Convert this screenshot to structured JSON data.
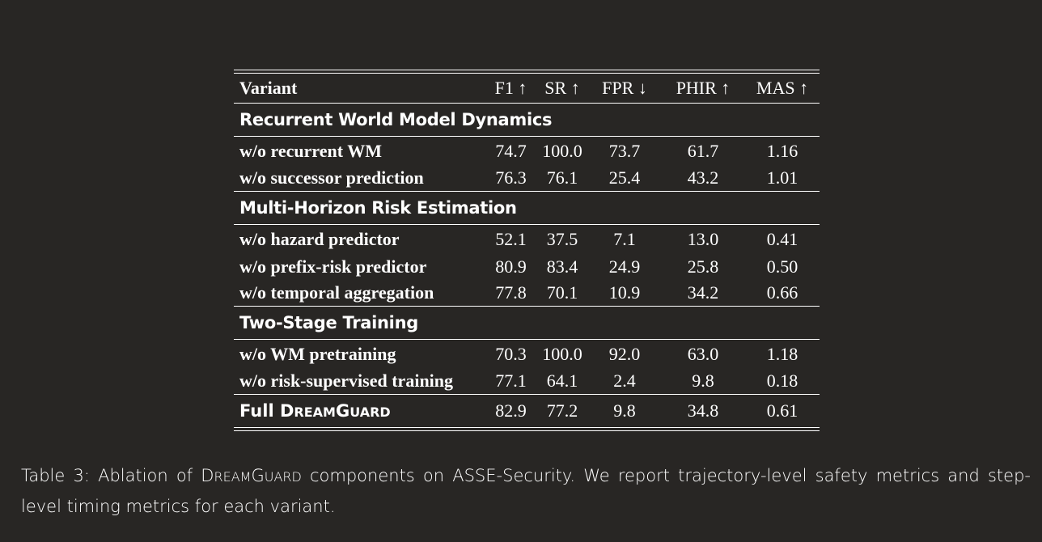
{
  "table": {
    "headers": [
      "Variant",
      "F1 ↑",
      "SR ↑",
      "FPR ↓",
      "PHIR ↑",
      "MAS ↑"
    ],
    "sections": [
      {
        "title": "Recurrent World Model Dynamics",
        "rows": [
          {
            "variant": "w/o recurrent WM",
            "values": [
              "74.7",
              "100.0",
              "73.7",
              "61.7",
              "1.16"
            ]
          },
          {
            "variant": "w/o successor prediction",
            "values": [
              "76.3",
              "76.1",
              "25.4",
              "43.2",
              "1.01"
            ]
          }
        ]
      },
      {
        "title": "Multi-Horizon Risk Estimation",
        "rows": [
          {
            "variant": "w/o hazard predictor",
            "values": [
              "52.1",
              "37.5",
              "7.1",
              "13.0",
              "0.41"
            ]
          },
          {
            "variant": "w/o prefix-risk predictor",
            "values": [
              "80.9",
              "83.4",
              "24.9",
              "25.8",
              "0.50"
            ]
          },
          {
            "variant": "w/o temporal aggregation",
            "values": [
              "77.8",
              "70.1",
              "10.9",
              "34.2",
              "0.66"
            ]
          }
        ]
      },
      {
        "title": "Two-Stage Training",
        "rows": [
          {
            "variant": "w/o WM pretraining",
            "values": [
              "70.3",
              "100.0",
              "92.0",
              "63.0",
              "1.18"
            ]
          },
          {
            "variant": "w/o risk-supervised training",
            "values": [
              "77.1",
              "64.1",
              "2.4",
              "9.8",
              "0.18"
            ]
          }
        ]
      }
    ],
    "full": {
      "label_prefix": "Full ",
      "name_D": "D",
      "name_ream": "ream",
      "name_G": "G",
      "name_uard": "uard",
      "values": [
        "82.9",
        "77.2",
        "9.8",
        "34.8",
        "0.61"
      ]
    }
  },
  "caption": {
    "part1": "Table 3: Ablation of ",
    "name_D": "D",
    "name_ream": "ream",
    "name_G": "G",
    "name_uard": "uard",
    "part2": " components on ASSE-Security. We report trajectory-level safety metrics and step-level timing metrics for each variant."
  }
}
